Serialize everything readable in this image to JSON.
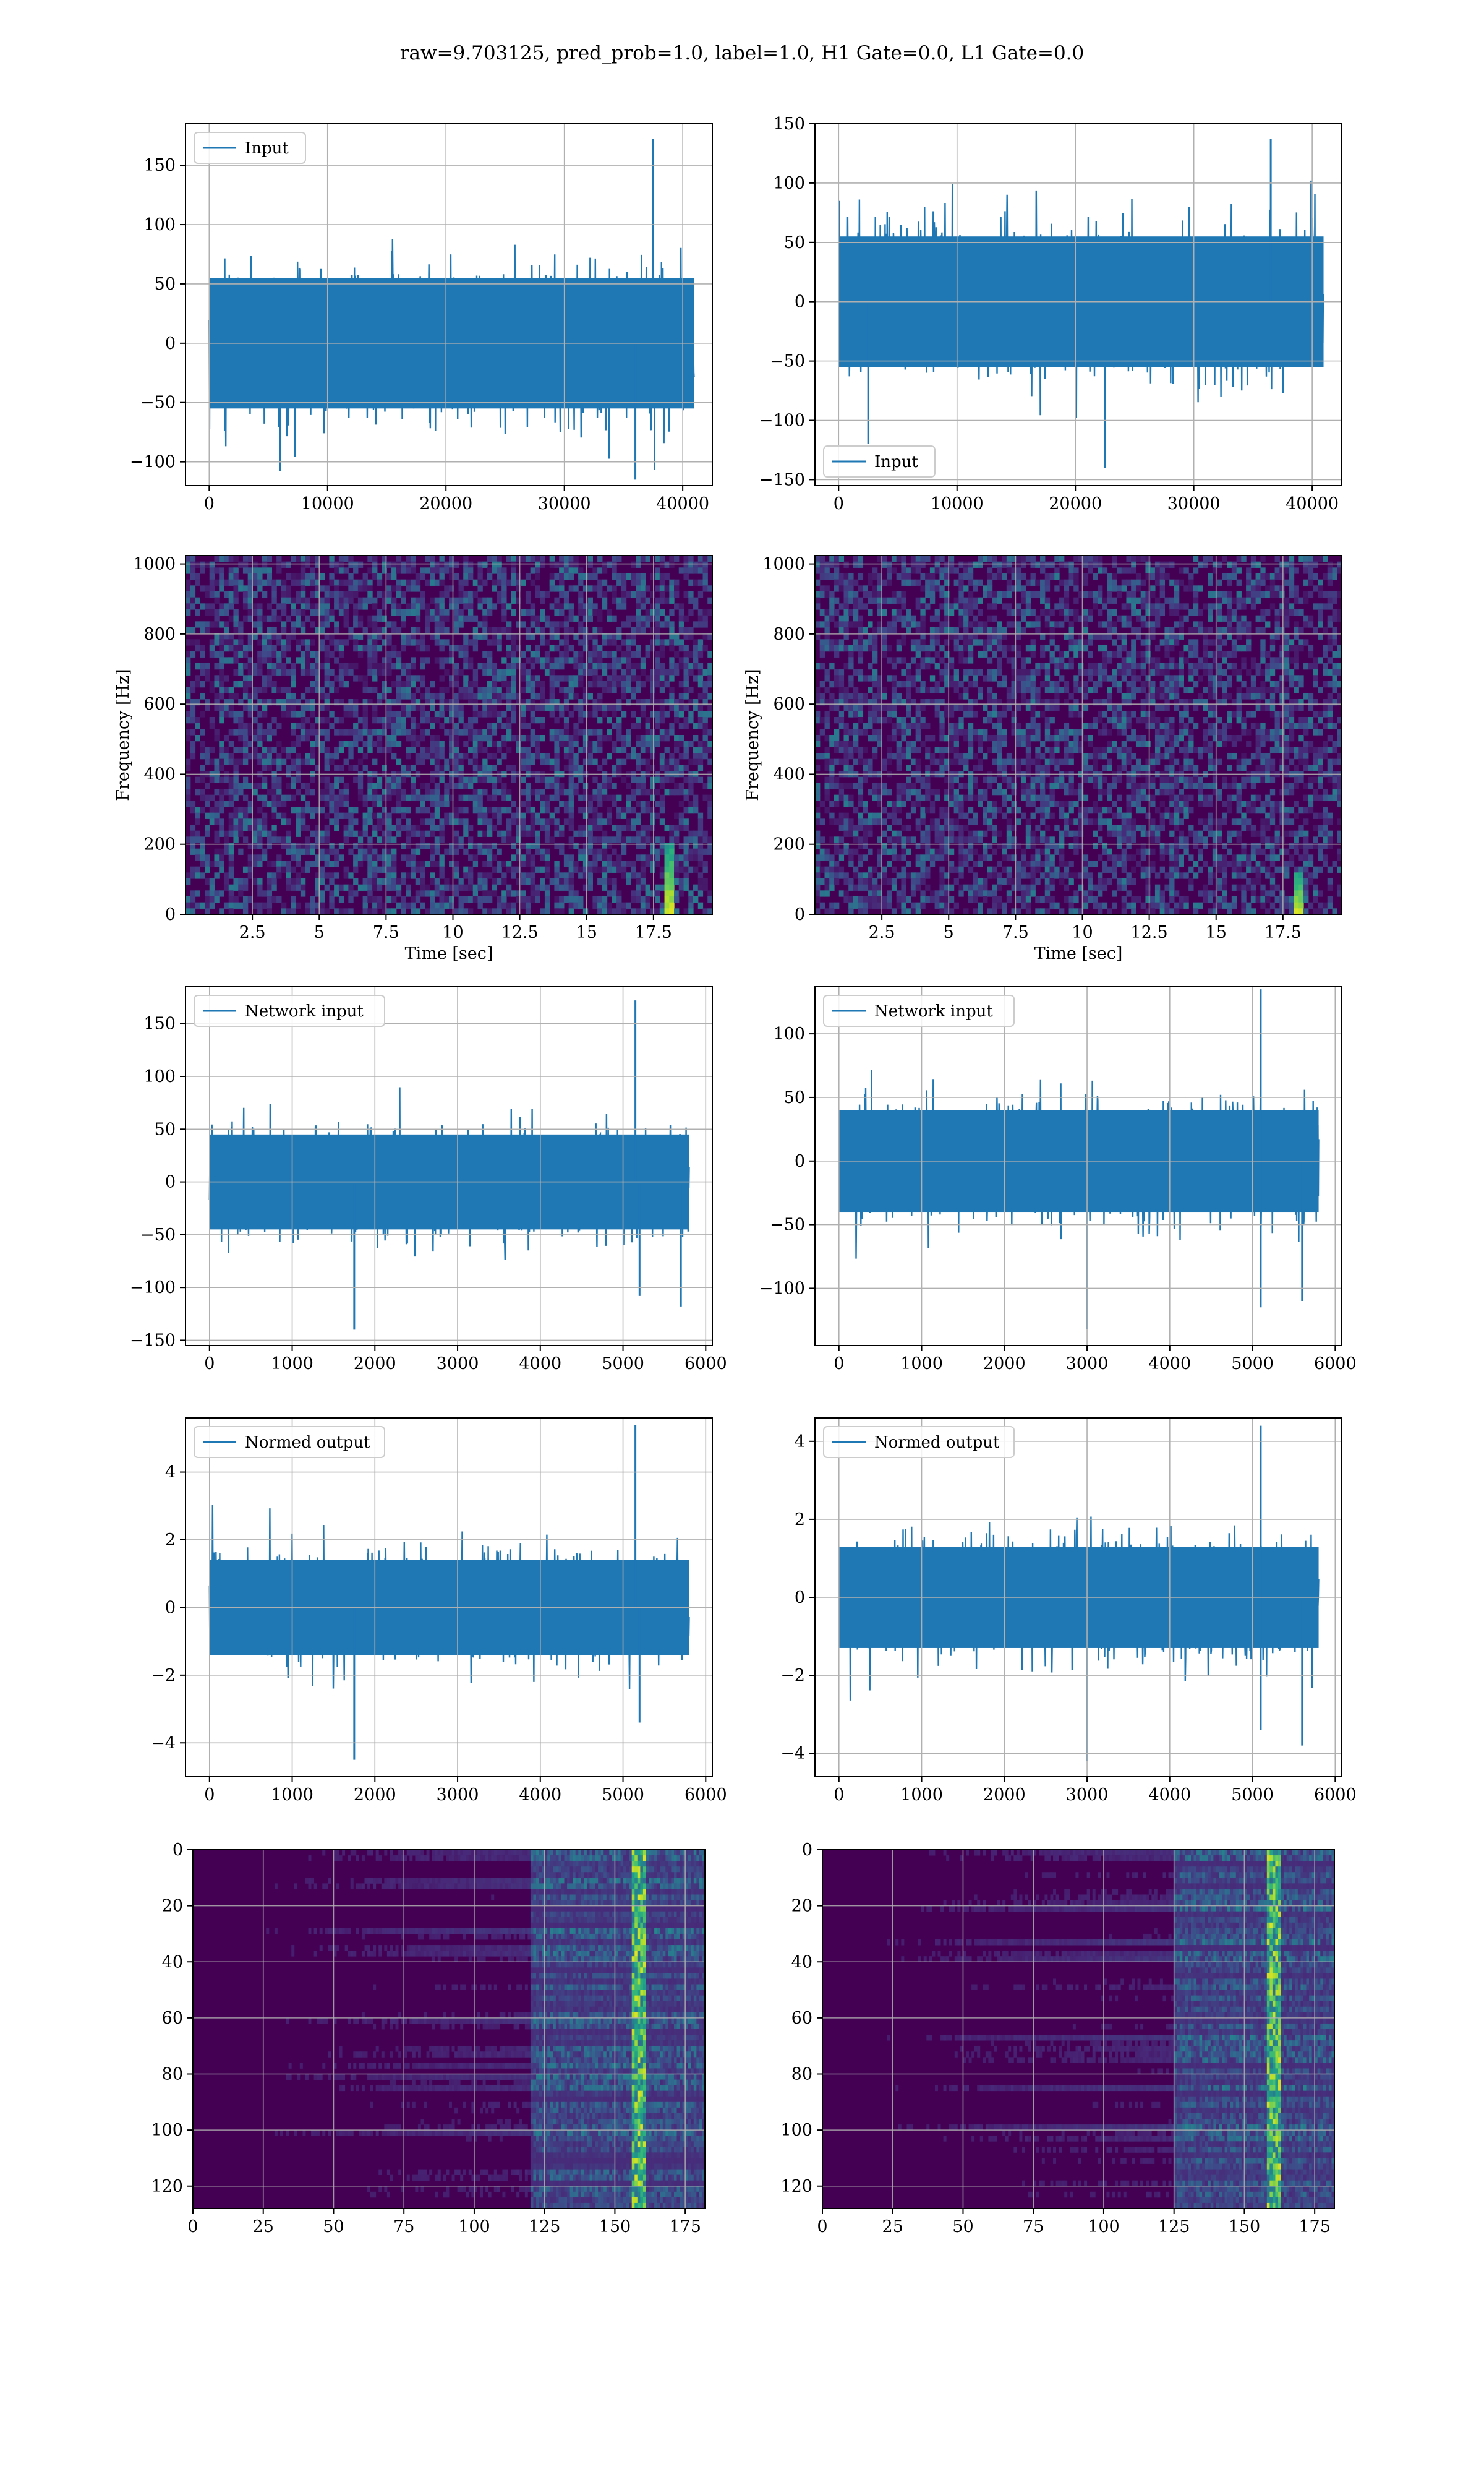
{
  "figure": {
    "title": "raw=9.703125, pred_prob=1.0, label=1.0, H1 Gate=0.0, L1 Gate=0.0",
    "colors": {
      "line": "#1f77b4",
      "grid": "#b0b0b0",
      "viridis_low": "#440154",
      "viridis_high": "#fde725"
    }
  },
  "chart_data": [
    {
      "id": "h1-input",
      "type": "line",
      "series": [
        {
          "name": "Input"
        }
      ],
      "legend_position": "upper left",
      "grid": true,
      "xlim": [
        -2000,
        42500
      ],
      "ylim": [
        -120,
        185
      ],
      "xticks": [
        0,
        10000,
        20000,
        30000,
        40000
      ],
      "yticks": [
        -100,
        -50,
        0,
        50,
        100,
        150
      ],
      "x_range": [
        0,
        40960
      ],
      "amplitude": 55,
      "spikes": [
        [
          37500,
          172
        ],
        [
          36000,
          -115
        ],
        [
          6000,
          -108
        ]
      ]
    },
    {
      "id": "l1-input",
      "type": "line",
      "series": [
        {
          "name": "Input"
        }
      ],
      "legend_position": "lower left",
      "grid": true,
      "xlim": [
        -2000,
        42500
      ],
      "ylim": [
        -155,
        150
      ],
      "xticks": [
        0,
        10000,
        20000,
        30000,
        40000
      ],
      "yticks": [
        -150,
        -100,
        -50,
        0,
        50,
        100,
        150
      ],
      "x_range": [
        0,
        40960
      ],
      "amplitude": 55,
      "spikes": [
        [
          36500,
          137
        ],
        [
          22500,
          -140
        ],
        [
          2500,
          -120
        ]
      ]
    },
    {
      "id": "h1-spectrogram",
      "type": "heatmap",
      "grid": true,
      "xlabel": "Time [sec]",
      "ylabel": "Frequency [Hz]",
      "xlim": [
        0,
        19.7
      ],
      "ylim": [
        0,
        1024
      ],
      "xticks": [
        2.5,
        5.0,
        7.5,
        10.0,
        12.5,
        15.0,
        17.5
      ],
      "yticks": [
        0,
        200,
        400,
        600,
        800,
        1000
      ],
      "colormap": "viridis",
      "bright_track_time": 18.0,
      "bright_track_max_freq": 200
    },
    {
      "id": "l1-spectrogram",
      "type": "heatmap",
      "grid": true,
      "xlabel": "Time [sec]",
      "ylabel": "Frequency [Hz]",
      "xlim": [
        0,
        19.7
      ],
      "ylim": [
        0,
        1024
      ],
      "xticks": [
        2.5,
        5.0,
        7.5,
        10.0,
        12.5,
        15.0,
        17.5
      ],
      "yticks": [
        0,
        200,
        400,
        600,
        800,
        1000
      ],
      "colormap": "viridis",
      "bright_track_time": 18.0,
      "bright_track_max_freq": 120
    },
    {
      "id": "h1-network-input",
      "type": "line",
      "series": [
        {
          "name": "Network input"
        }
      ],
      "legend_position": "upper left",
      "grid": true,
      "xlim": [
        -290,
        6080
      ],
      "ylim": [
        -155,
        185
      ],
      "xticks": [
        0,
        1000,
        2000,
        3000,
        4000,
        5000,
        6000
      ],
      "yticks": [
        -150,
        -100,
        -50,
        0,
        50,
        100,
        150
      ],
      "x_range": [
        0,
        5800
      ],
      "amplitude": 45,
      "spikes": [
        [
          5150,
          172
        ],
        [
          1750,
          -140
        ],
        [
          5200,
          -108
        ],
        [
          5700,
          -118
        ]
      ]
    },
    {
      "id": "l1-network-input",
      "type": "line",
      "series": [
        {
          "name": "Network input"
        }
      ],
      "legend_position": "upper left",
      "grid": true,
      "xlim": [
        -290,
        6080
      ],
      "ylim": [
        -145,
        137
      ],
      "xticks": [
        0,
        1000,
        2000,
        3000,
        4000,
        5000,
        6000
      ],
      "yticks": [
        -100,
        -50,
        0,
        50,
        100
      ],
      "x_range": [
        0,
        5800
      ],
      "amplitude": 40,
      "spikes": [
        [
          5100,
          135
        ],
        [
          3000,
          -132
        ],
        [
          5100,
          -115
        ],
        [
          5600,
          -110
        ]
      ]
    },
    {
      "id": "h1-normed-output",
      "type": "line",
      "series": [
        {
          "name": "Normed output"
        }
      ],
      "legend_position": "upper left",
      "grid": true,
      "xlim": [
        -290,
        6080
      ],
      "ylim": [
        -5,
        5.6
      ],
      "xticks": [
        0,
        1000,
        2000,
        3000,
        4000,
        5000,
        6000
      ],
      "yticks": [
        -4,
        -2,
        0,
        2,
        4
      ],
      "x_range": [
        0,
        5800
      ],
      "amplitude": 1.4,
      "spikes": [
        [
          5150,
          5.4
        ],
        [
          1750,
          -4.5
        ],
        [
          5200,
          -3.4
        ]
      ]
    },
    {
      "id": "l1-normed-output",
      "type": "line",
      "series": [
        {
          "name": "Normed output"
        }
      ],
      "legend_position": "upper left",
      "grid": true,
      "xlim": [
        -290,
        6080
      ],
      "ylim": [
        -4.6,
        4.6
      ],
      "xticks": [
        0,
        1000,
        2000,
        3000,
        4000,
        5000,
        6000
      ],
      "yticks": [
        -4,
        -2,
        0,
        2,
        4
      ],
      "x_range": [
        0,
        5800
      ],
      "amplitude": 1.3,
      "spikes": [
        [
          5100,
          4.4
        ],
        [
          3000,
          -4.2
        ],
        [
          5100,
          -3.4
        ],
        [
          5600,
          -3.8
        ]
      ]
    },
    {
      "id": "h1-feature-map",
      "type": "heatmap",
      "grid": true,
      "xlim": [
        0,
        182
      ],
      "ylim": [
        128,
        0
      ],
      "xticks": [
        0,
        25,
        50,
        75,
        100,
        125,
        150,
        175
      ],
      "yticks": [
        0,
        20,
        40,
        60,
        80,
        100,
        120
      ],
      "colormap": "viridis",
      "active_from": 120,
      "peak_column": 158
    },
    {
      "id": "l1-feature-map",
      "type": "heatmap",
      "grid": true,
      "xlim": [
        0,
        182
      ],
      "ylim": [
        128,
        0
      ],
      "xticks": [
        0,
        25,
        50,
        75,
        100,
        125,
        150,
        175
      ],
      "yticks": [
        0,
        20,
        40,
        60,
        80,
        100,
        120
      ],
      "colormap": "viridis",
      "active_from": 125,
      "peak_column": 160
    }
  ]
}
